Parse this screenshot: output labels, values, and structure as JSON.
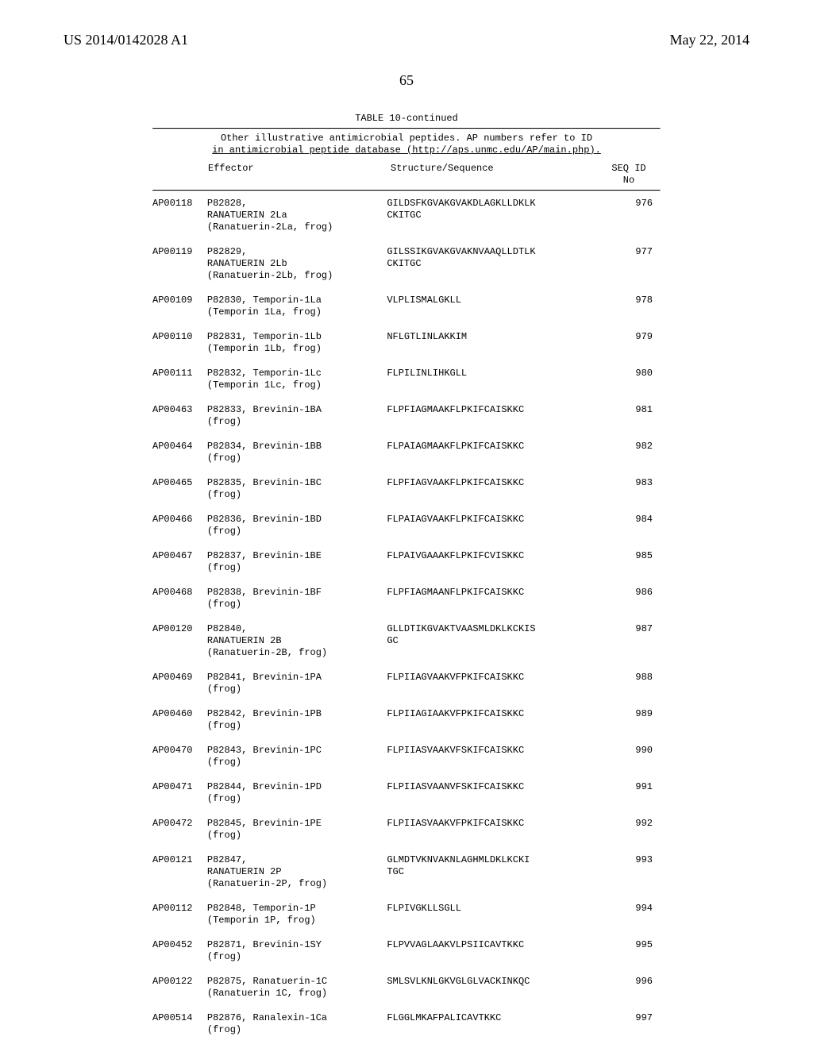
{
  "header": {
    "left": "US 2014/0142028 A1",
    "right": "May 22, 2014"
  },
  "page_number": "65",
  "table": {
    "title": "TABLE 10-continued",
    "caption_line1": "Other illustrative antimicrobial peptides. AP numbers refer to ID",
    "caption_line2": "in antimicrobial peptide database (http://aps.unmc.edu/AP/main.php).",
    "col_headers": {
      "c1": "",
      "c2": "Effector",
      "c3": "Structure/Sequence",
      "c4a": "SEQ ID",
      "c4b": "No"
    },
    "rows": [
      {
        "ap": "AP00118",
        "eff": "P82828,\nRANATUERIN 2La\n(Ranatuerin-2La, frog)",
        "seq": "GILDSFKGVAKGVAKDLAGKLLDKLK\nCKITGC",
        "id": "976"
      },
      {
        "ap": "AP00119",
        "eff": "P82829,\nRANATUERIN 2Lb\n(Ranatuerin-2Lb, frog)",
        "seq": "GILSSIKGVAKGVAKNVAAQLLDTLK\nCKITGC",
        "id": "977"
      },
      {
        "ap": "AP00109",
        "eff": "P82830, Temporin-1La\n(Temporin 1La, frog)",
        "seq": "VLPLISMALGKLL",
        "id": "978"
      },
      {
        "ap": "AP00110",
        "eff": "P82831, Temporin-1Lb\n(Temporin 1Lb, frog)",
        "seq": "NFLGTLINLAKKIM",
        "id": "979"
      },
      {
        "ap": "AP00111",
        "eff": "P82832, Temporin-1Lc\n(Temporin 1Lc, frog)",
        "seq": "FLPILINLIHKGLL",
        "id": "980"
      },
      {
        "ap": "AP00463",
        "eff": "P82833, Brevinin-1BA\n(frog)",
        "seq": "FLPFIAGMAAKFLPKIFCAISKKC",
        "id": "981"
      },
      {
        "ap": "AP00464",
        "eff": "P82834, Brevinin-1BB\n(frog)",
        "seq": "FLPAIAGMAAKFLPKIFCAISKKC",
        "id": "982"
      },
      {
        "ap": "AP00465",
        "eff": "P82835, Brevinin-1BC\n(frog)",
        "seq": "FLPFIAGVAAKFLPKIFCAISKKC",
        "id": "983"
      },
      {
        "ap": "AP00466",
        "eff": "P82836, Brevinin-1BD\n(frog)",
        "seq": "FLPAIAGVAAKFLPKIFCAISKKC",
        "id": "984"
      },
      {
        "ap": "AP00467",
        "eff": "P82837, Brevinin-1BE\n(frog)",
        "seq": "FLPAIVGAAAKFLPKIFCVISKKC",
        "id": "985"
      },
      {
        "ap": "AP00468",
        "eff": "P82838, Brevinin-1BF\n(frog)",
        "seq": "FLPFIAGMAANFLPKIFCAISKKC",
        "id": "986"
      },
      {
        "ap": "AP00120",
        "eff": "P82840,\nRANATUERIN 2B\n(Ranatuerin-2B, frog)",
        "seq": "GLLDTIKGVAKTVAASMLDKLKCKIS\nGC",
        "id": "987"
      },
      {
        "ap": "AP00469",
        "eff": "P82841, Brevinin-1PA\n(frog)",
        "seq": "FLPIIAGVAAKVFPKIFCAISKKC",
        "id": "988"
      },
      {
        "ap": "AP00460",
        "eff": "P82842, Brevinin-1PB\n(frog)",
        "seq": "FLPIIAGIAAKVFPKIFCAISKKC",
        "id": "989"
      },
      {
        "ap": "AP00470",
        "eff": "P82843, Brevinin-1PC\n(frog)",
        "seq": "FLPIIASVAAKVFSKIFCAISKKC",
        "id": "990"
      },
      {
        "ap": "AP00471",
        "eff": "P82844, Brevinin-1PD\n(frog)",
        "seq": "FLPIIASVAANVFSKIFCAISKKC",
        "id": "991"
      },
      {
        "ap": "AP00472",
        "eff": "P82845, Brevinin-1PE\n(frog)",
        "seq": "FLPIIASVAAKVFPKIFCAISKKC",
        "id": "992"
      },
      {
        "ap": "AP00121",
        "eff": "P82847,\nRANATUERIN 2P\n(Ranatuerin-2P, frog)",
        "seq": "GLMDTVKNVAKNLAGHMLDKLKCKI\nTGC",
        "id": "993"
      },
      {
        "ap": "AP00112",
        "eff": "P82848, Temporin-1P\n(Temporin 1P, frog)",
        "seq": "FLPIVGKLLSGLL",
        "id": "994"
      },
      {
        "ap": "AP00452",
        "eff": "P82871, Brevinin-1SY\n(frog)",
        "seq": "FLPVVAGLAAKVLPSIICAVTKKC",
        "id": "995"
      },
      {
        "ap": "AP00122",
        "eff": "P82875, Ranatuerin-1C\n(Ranatuerin 1C, frog)",
        "seq": "SMLSVLKNLGKVGLGLVACKINKQC",
        "id": "996"
      },
      {
        "ap": "AP00514",
        "eff": "P82876, Ranalexin-1Ca\n(frog)",
        "seq": "FLGGLMKAFPALICAVTKKC",
        "id": "997"
      }
    ]
  }
}
